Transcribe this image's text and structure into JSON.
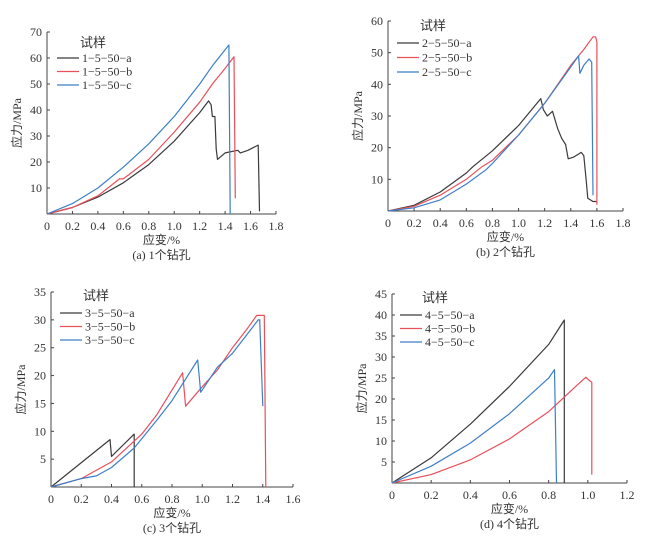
{
  "chart_data": [
    {
      "type": "line",
      "caption": "(a) 1个钻孔",
      "xlabel": "应变/%",
      "ylabel": "应力/MPa",
      "xlim": [
        0,
        1.8
      ],
      "ylim": [
        0,
        70
      ],
      "xticks": [
        0,
        0.2,
        0.4,
        0.6,
        0.8,
        1.0,
        1.2,
        1.4,
        1.6,
        1.8
      ],
      "xtick_labels": [
        "0",
        "0.2",
        "0.4",
        "0.6",
        "0.8",
        "1.0",
        "1.2",
        "1.4",
        "1.6",
        "1.8"
      ],
      "yticks": [
        10,
        20,
        30,
        40,
        50,
        60,
        70
      ],
      "ytick_labels": [
        "10",
        "20",
        "30",
        "40",
        "50",
        "60",
        "70"
      ],
      "legend_title": "试样",
      "legend_placement": "top-left",
      "series": [
        {
          "name": "1−5−50−a",
          "color": "#3a3a3a",
          "points": [
            [
              0,
              0
            ],
            [
              0.2,
              2.5
            ],
            [
              0.4,
              6.5
            ],
            [
              0.6,
              12
            ],
            [
              0.8,
              19
            ],
            [
              1.0,
              28
            ],
            [
              1.2,
              39
            ],
            [
              1.27,
              43.5
            ],
            [
              1.29,
              42
            ],
            [
              1.3,
              37.5
            ],
            [
              1.32,
              37.5
            ],
            [
              1.33,
              25
            ],
            [
              1.34,
              21
            ],
            [
              1.4,
              23.5
            ],
            [
              1.5,
              24.5
            ],
            [
              1.52,
              23.5
            ],
            [
              1.58,
              24.5
            ],
            [
              1.66,
              26.5
            ],
            [
              1.67,
              1
            ]
          ]
        },
        {
          "name": "1−5−50−b",
          "color": "#e8505a",
          "points": [
            [
              0,
              0
            ],
            [
              0.2,
              2.5
            ],
            [
              0.4,
              7
            ],
            [
              0.57,
              13.5
            ],
            [
              0.6,
              13.5
            ],
            [
              0.8,
              21
            ],
            [
              1.0,
              31.5
            ],
            [
              1.2,
              43
            ],
            [
              1.3,
              50
            ],
            [
              1.4,
              56
            ],
            [
              1.47,
              60.5
            ],
            [
              1.48,
              6
            ]
          ]
        },
        {
          "name": "1−5−50−c",
          "color": "#3d7fc7",
          "points": [
            [
              0,
              0
            ],
            [
              0.2,
              4
            ],
            [
              0.4,
              10
            ],
            [
              0.6,
              18
            ],
            [
              0.8,
              27
            ],
            [
              1.0,
              37.5
            ],
            [
              1.2,
              50
            ],
            [
              1.3,
              57
            ],
            [
              1.43,
              65
            ],
            [
              1.44,
              0
            ]
          ]
        }
      ]
    },
    {
      "type": "line",
      "caption": "(b) 2个钻孔",
      "xlabel": "应变/%",
      "ylabel": "应力/MPa",
      "xlim": [
        0,
        1.8
      ],
      "ylim": [
        0,
        60
      ],
      "xticks": [
        0,
        0.2,
        0.4,
        0.6,
        0.8,
        1.0,
        1.2,
        1.4,
        1.6,
        1.8
      ],
      "xtick_labels": [
        "0",
        "0.2",
        "0.4",
        "0.6",
        "0.8",
        "1.0",
        "1.2",
        "1.4",
        "1.6",
        "1.8"
      ],
      "yticks": [
        10,
        20,
        30,
        40,
        50,
        60
      ],
      "ytick_labels": [
        "10",
        "20",
        "30",
        "40",
        "50",
        "60"
      ],
      "legend_title": "试样",
      "legend_placement": "top-left",
      "series": [
        {
          "name": "2−5−50−a",
          "color": "#3a3a3a",
          "points": [
            [
              0,
              0
            ],
            [
              0.2,
              1.8
            ],
            [
              0.4,
              6
            ],
            [
              0.6,
              12
            ],
            [
              0.65,
              14
            ],
            [
              0.8,
              19
            ],
            [
              1.0,
              27
            ],
            [
              1.17,
              35.5
            ],
            [
              1.19,
              32
            ],
            [
              1.22,
              30
            ],
            [
              1.26,
              31.5
            ],
            [
              1.3,
              26
            ],
            [
              1.33,
              23
            ],
            [
              1.36,
              21
            ],
            [
              1.38,
              16.5
            ],
            [
              1.42,
              17
            ],
            [
              1.48,
              18.5
            ],
            [
              1.5,
              17.5
            ],
            [
              1.52,
              9
            ],
            [
              1.53,
              4
            ],
            [
              1.57,
              3
            ],
            [
              1.6,
              3
            ]
          ]
        },
        {
          "name": "2−5−50−b",
          "color": "#e8505a",
          "points": [
            [
              0,
              0
            ],
            [
              0.2,
              1.5
            ],
            [
              0.4,
              5
            ],
            [
              0.6,
              10
            ],
            [
              0.72,
              14
            ],
            [
              0.8,
              16
            ],
            [
              1.0,
              24
            ],
            [
              1.2,
              34
            ],
            [
              1.4,
              46
            ],
            [
              1.5,
              51
            ],
            [
              1.57,
              55
            ],
            [
              1.59,
              55
            ],
            [
              1.6,
              53.5
            ],
            [
              1.6,
              2
            ]
          ]
        },
        {
          "name": "2−5−50−c",
          "color": "#3d7fc7",
          "points": [
            [
              0,
              0
            ],
            [
              0.2,
              1
            ],
            [
              0.4,
              3.5
            ],
            [
              0.6,
              8.5
            ],
            [
              0.75,
              13
            ],
            [
              0.8,
              15
            ],
            [
              1.0,
              24
            ],
            [
              1.2,
              34
            ],
            [
              1.4,
              45.5
            ],
            [
              1.46,
              49
            ],
            [
              1.47,
              43.5
            ],
            [
              1.5,
              46
            ],
            [
              1.54,
              48
            ],
            [
              1.56,
              47
            ],
            [
              1.57,
              5
            ]
          ]
        }
      ]
    },
    {
      "type": "line",
      "caption": "(c) 3个钻孔",
      "xlabel": "应变/%",
      "ylabel": "应力/MPa",
      "xlim": [
        0,
        1.6
      ],
      "ylim": [
        0,
        35
      ],
      "xticks": [
        0,
        0.2,
        0.4,
        0.6,
        0.8,
        1.0,
        1.2,
        1.4,
        1.6
      ],
      "xtick_labels": [
        "0",
        "0.2",
        "0.4",
        "0.6",
        "0.8",
        "1.0",
        "1.2",
        "1.4",
        "1.6"
      ],
      "yticks": [
        5,
        10,
        15,
        20,
        25,
        30,
        35
      ],
      "ytick_labels": [
        "5",
        "10",
        "15",
        "20",
        "25",
        "30",
        "35"
      ],
      "legend_title": "试样",
      "legend_placement": "top-left",
      "series": [
        {
          "name": "3−5−50−a",
          "color": "#3a3a3a",
          "points": [
            [
              0,
              0
            ],
            [
              0.39,
              8.5
            ],
            [
              0.4,
              5.5
            ],
            [
              0.55,
              9.5
            ],
            [
              0.55,
              0
            ]
          ]
        },
        {
          "name": "3−5−50−b",
          "color": "#e8505a",
          "points": [
            [
              0,
              0
            ],
            [
              0.2,
              1.5
            ],
            [
              0.4,
              4.5
            ],
            [
              0.6,
              9.5
            ],
            [
              0.7,
              13
            ],
            [
              0.87,
              20.5
            ],
            [
              0.89,
              14.5
            ],
            [
              1.0,
              18
            ],
            [
              1.1,
              21
            ],
            [
              1.2,
              25
            ],
            [
              1.3,
              28.5
            ],
            [
              1.36,
              30.8
            ],
            [
              1.41,
              30.8
            ],
            [
              1.42,
              0
            ]
          ]
        },
        {
          "name": "3−5−50−c",
          "color": "#3d7fc7",
          "points": [
            [
              0,
              0
            ],
            [
              0.2,
              1.5
            ],
            [
              0.3,
              2
            ],
            [
              0.4,
              3.5
            ],
            [
              0.55,
              7
            ],
            [
              0.7,
              12
            ],
            [
              0.8,
              15.5
            ],
            [
              0.97,
              22.8
            ],
            [
              0.99,
              17
            ],
            [
              1.1,
              21.5
            ],
            [
              1.2,
              24
            ],
            [
              1.3,
              27.5
            ],
            [
              1.37,
              30
            ],
            [
              1.38,
              30
            ],
            [
              1.39,
              22.5
            ],
            [
              1.4,
              14.5
            ]
          ]
        }
      ]
    },
    {
      "type": "line",
      "caption": "(d) 4个钻孔",
      "xlabel": "应变/%",
      "ylabel": "应力/MPa",
      "xlim": [
        0,
        1.2
      ],
      "ylim": [
        0,
        45
      ],
      "xticks": [
        0,
        0.2,
        0.4,
        0.6,
        0.8,
        1.0,
        1.2
      ],
      "xtick_labels": [
        "0",
        "0.2",
        "0.4",
        "0.6",
        "0.8",
        "1.0",
        "1.2"
      ],
      "yticks": [
        5,
        10,
        15,
        20,
        25,
        30,
        35,
        40,
        45
      ],
      "ytick_labels": [
        "5",
        "10",
        "15",
        "20",
        "25",
        "30",
        "35",
        "40",
        "45"
      ],
      "legend_title": "试样",
      "legend_placement": "top-left",
      "series": [
        {
          "name": "4−5−50−a",
          "color": "#3a3a3a",
          "points": [
            [
              0,
              0
            ],
            [
              0.2,
              6
            ],
            [
              0.35,
              12
            ],
            [
              0.4,
              14
            ],
            [
              0.6,
              23
            ],
            [
              0.8,
              33
            ],
            [
              0.88,
              38.8
            ],
            [
              0.88,
              0
            ]
          ]
        },
        {
          "name": "4−5−50−b",
          "color": "#e8505a",
          "points": [
            [
              0,
              0
            ],
            [
              0.2,
              2
            ],
            [
              0.4,
              5.5
            ],
            [
              0.6,
              10.5
            ],
            [
              0.8,
              17
            ],
            [
              0.95,
              23.5
            ],
            [
              0.99,
              25.2
            ],
            [
              1.01,
              24.3
            ],
            [
              1.02,
              24
            ],
            [
              1.02,
              2
            ]
          ]
        },
        {
          "name": "4−5−50−c",
          "color": "#3d7fc7",
          "points": [
            [
              0,
              0
            ],
            [
              0.2,
              4
            ],
            [
              0.4,
              9.5
            ],
            [
              0.6,
              16.5
            ],
            [
              0.8,
              25
            ],
            [
              0.83,
              27
            ],
            [
              0.84,
              0
            ]
          ]
        }
      ]
    }
  ]
}
